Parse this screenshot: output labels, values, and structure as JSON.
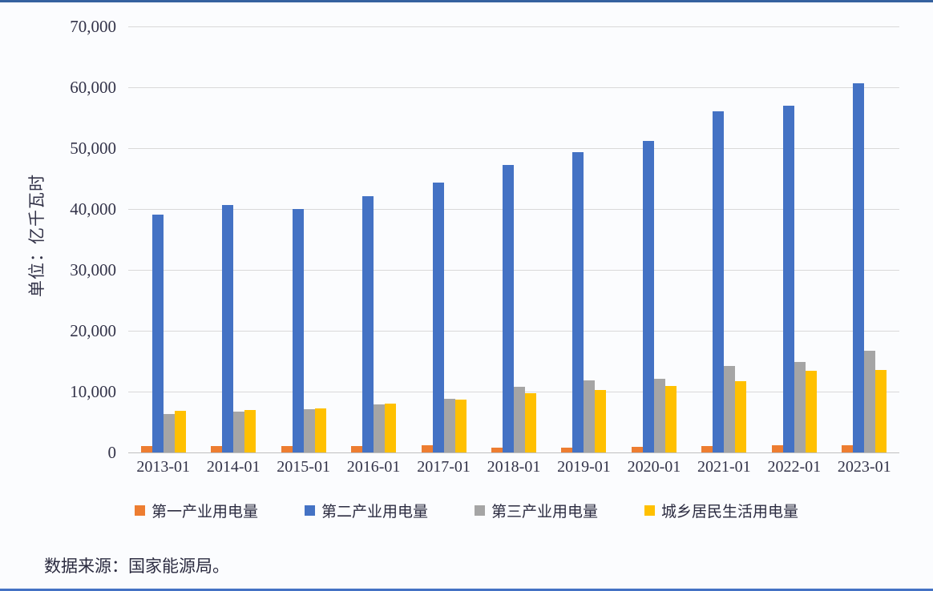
{
  "page": {
    "background": "#fbfcfe",
    "top_border_color": "#35619f",
    "bottom_border_color": "#4472c4"
  },
  "chart_data": {
    "type": "bar",
    "title": "",
    "unit_label": "单位：亿千瓦时",
    "categories": [
      "2013-01",
      "2014-01",
      "2015-01",
      "2016-01",
      "2017-01",
      "2018-01",
      "2019-01",
      "2020-01",
      "2021-01",
      "2022-01",
      "2023-01"
    ],
    "series": [
      {
        "name": "第一产业用电量",
        "color": "#ED7D31",
        "values": [
          1014,
          994,
          1020,
          1075,
          1155,
          730,
          780,
          860,
          1020,
          1145,
          1160
        ]
      },
      {
        "name": "第二产业用电量",
        "color": "#4472C4",
        "values": [
          39100,
          40650,
          40050,
          42100,
          44400,
          47200,
          49350,
          51200,
          56100,
          57000,
          60700
        ]
      },
      {
        "name": "第三产业用电量",
        "color": "#A5A5A5",
        "values": [
          6270,
          6660,
          7160,
          7960,
          8810,
          10800,
          11860,
          12090,
          14230,
          14860,
          16690
        ]
      },
      {
        "name": "城乡居民生活用电量",
        "color": "#FFC000",
        "values": [
          6790,
          6930,
          7280,
          8050,
          8700,
          9690,
          10250,
          10950,
          11740,
          13370,
          13520
        ]
      }
    ],
    "ylim": [
      0,
      70000
    ],
    "ytick_step": 10000,
    "yticks": [
      "70,000",
      "60,000",
      "50,000",
      "40,000",
      "30,000",
      "20,000",
      "10,000",
      "0"
    ],
    "grid": "horizontal",
    "legend_position": "bottom",
    "grid_color": "#d9d9d9"
  },
  "footer": {
    "source_text": "数据来源：国家能源局。"
  }
}
